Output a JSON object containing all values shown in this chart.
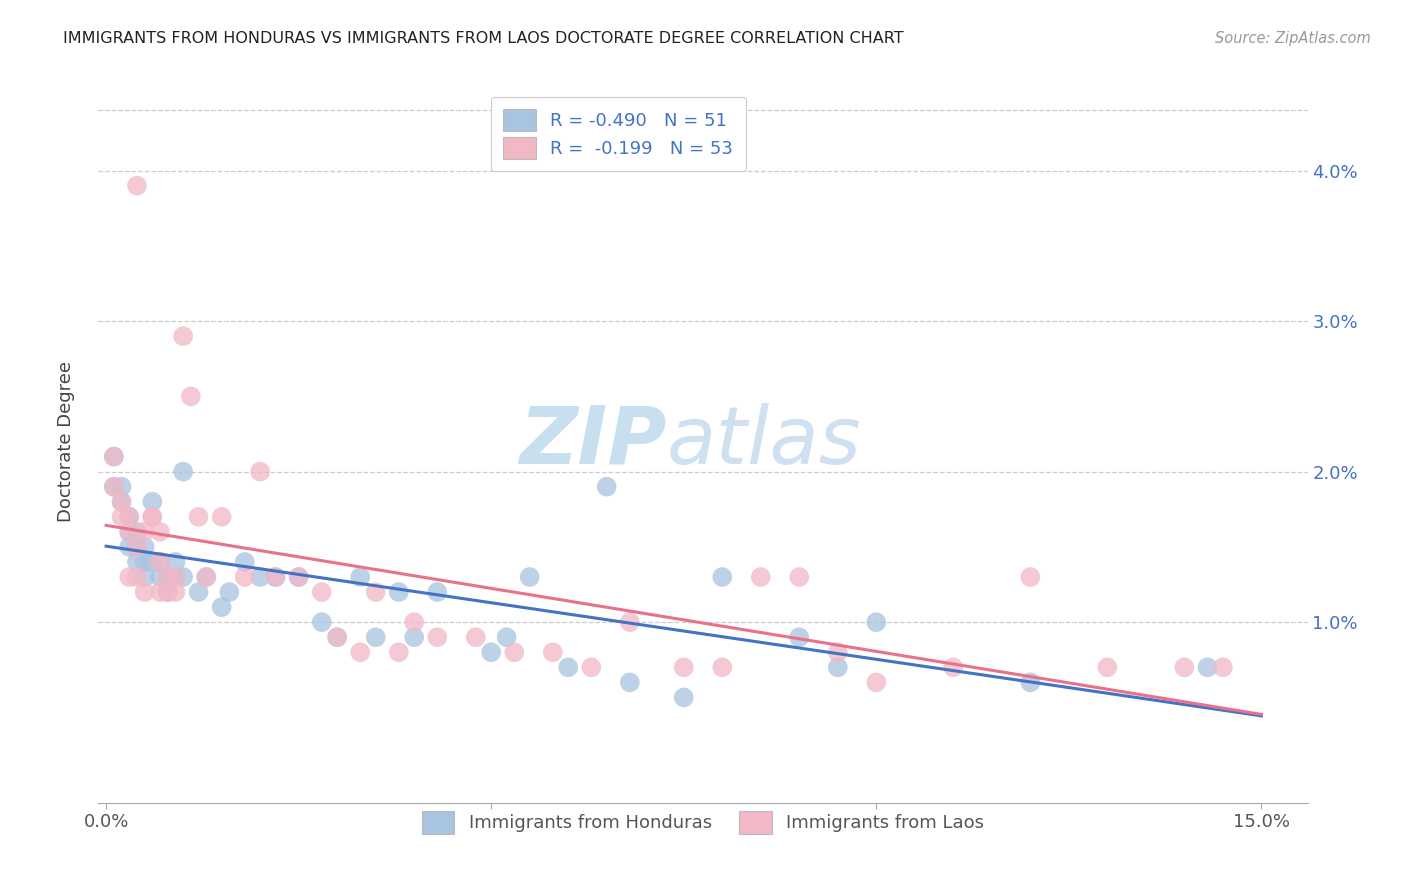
{
  "title": "IMMIGRANTS FROM HONDURAS VS IMMIGRANTS FROM LAOS DOCTORATE DEGREE CORRELATION CHART",
  "source": "Source: ZipAtlas.com",
  "ylabel": "Doctorate Degree",
  "xlim": [
    0.0,
    0.15
  ],
  "ylim": [
    -0.002,
    0.046
  ],
  "color_honduras": "#a8c4e0",
  "color_laos": "#f2b8c6",
  "line_color_honduras": "#4472c4",
  "line_color_laos": "#e8728a",
  "legend_R_honduras": "-0.490",
  "legend_N_honduras": "51",
  "legend_R_laos": "-0.199",
  "legend_N_laos": "53",
  "watermark_zip": "ZIP",
  "watermark_atlas": "atlas",
  "honduras_x": [
    0.001,
    0.001,
    0.002,
    0.002,
    0.003,
    0.003,
    0.003,
    0.004,
    0.004,
    0.004,
    0.005,
    0.005,
    0.005,
    0.006,
    0.006,
    0.007,
    0.007,
    0.008,
    0.008,
    0.009,
    0.009,
    0.01,
    0.01,
    0.012,
    0.013,
    0.015,
    0.016,
    0.018,
    0.02,
    0.022,
    0.025,
    0.028,
    0.03,
    0.033,
    0.035,
    0.038,
    0.04,
    0.043,
    0.05,
    0.052,
    0.055,
    0.06,
    0.065,
    0.068,
    0.075,
    0.08,
    0.09,
    0.095,
    0.1,
    0.12,
    0.143
  ],
  "honduras_y": [
    0.021,
    0.019,
    0.019,
    0.018,
    0.017,
    0.016,
    0.015,
    0.016,
    0.015,
    0.014,
    0.015,
    0.014,
    0.013,
    0.018,
    0.014,
    0.014,
    0.013,
    0.013,
    0.012,
    0.014,
    0.013,
    0.02,
    0.013,
    0.012,
    0.013,
    0.011,
    0.012,
    0.014,
    0.013,
    0.013,
    0.013,
    0.01,
    0.009,
    0.013,
    0.009,
    0.012,
    0.009,
    0.012,
    0.008,
    0.009,
    0.013,
    0.007,
    0.019,
    0.006,
    0.005,
    0.013,
    0.009,
    0.007,
    0.01,
    0.006,
    0.007
  ],
  "laos_x": [
    0.001,
    0.001,
    0.002,
    0.002,
    0.003,
    0.003,
    0.003,
    0.004,
    0.004,
    0.004,
    0.005,
    0.005,
    0.006,
    0.006,
    0.007,
    0.007,
    0.007,
    0.008,
    0.008,
    0.009,
    0.009,
    0.01,
    0.011,
    0.012,
    0.013,
    0.015,
    0.018,
    0.02,
    0.022,
    0.025,
    0.028,
    0.03,
    0.033,
    0.035,
    0.038,
    0.04,
    0.043,
    0.048,
    0.053,
    0.058,
    0.063,
    0.068,
    0.075,
    0.08,
    0.085,
    0.09,
    0.095,
    0.1,
    0.11,
    0.12,
    0.13,
    0.14,
    0.145
  ],
  "laos_y": [
    0.021,
    0.019,
    0.018,
    0.017,
    0.017,
    0.016,
    0.013,
    0.039,
    0.015,
    0.013,
    0.016,
    0.012,
    0.017,
    0.017,
    0.016,
    0.014,
    0.012,
    0.013,
    0.012,
    0.013,
    0.012,
    0.029,
    0.025,
    0.017,
    0.013,
    0.017,
    0.013,
    0.02,
    0.013,
    0.013,
    0.012,
    0.009,
    0.008,
    0.012,
    0.008,
    0.01,
    0.009,
    0.009,
    0.008,
    0.008,
    0.007,
    0.01,
    0.007,
    0.007,
    0.013,
    0.013,
    0.008,
    0.006,
    0.007,
    0.013,
    0.007,
    0.007,
    0.007
  ]
}
